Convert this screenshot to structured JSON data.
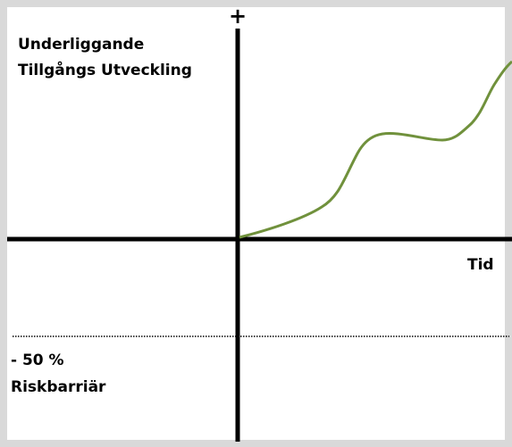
{
  "axis": {
    "plus": "+",
    "x_label": "Tid"
  },
  "y_label": [
    "Underliggande",
    "Tillgångs Utveckling"
  ],
  "barrier": {
    "level": "- 50 %",
    "label": "Riskbarriär"
  }
}
